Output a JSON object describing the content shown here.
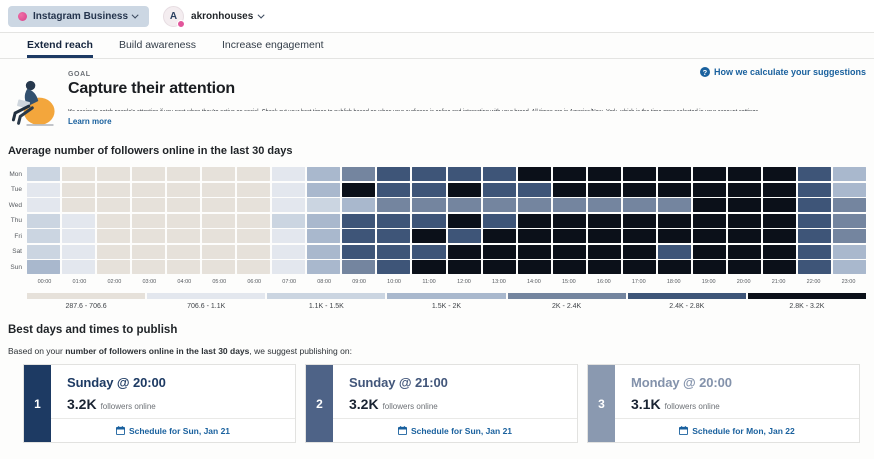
{
  "topbar": {
    "network_label": "Instagram Business",
    "profile_name": "akronhouses",
    "avatar_letter": "A"
  },
  "tabs": [
    {
      "label": "Extend reach",
      "active": true
    },
    {
      "label": "Build awareness",
      "active": false
    },
    {
      "label": "Increase engagement",
      "active": false
    }
  ],
  "goal": {
    "eyebrow": "GOAL",
    "title": "Capture their attention",
    "description": "It's easier to catch people's attention if you post when they're active on social. Check out your best times to publish based on when your audience is online and interacting with your brand. All times are in America/New_York, which is the time zone selected in your account settings.",
    "learn_more": "Learn more",
    "help_link": "How we calculate your suggestions"
  },
  "chart_data": {
    "type": "heatmap",
    "title": "Average number of followers online in the last 30 days",
    "rows": [
      "Mon",
      "Tue",
      "Wed",
      "Thu",
      "Fri",
      "Sat",
      "Sun"
    ],
    "columns": [
      "00:00",
      "01:00",
      "02:00",
      "03:00",
      "04:00",
      "05:00",
      "06:00",
      "07:00",
      "08:00",
      "09:00",
      "10:00",
      "11:00",
      "12:00",
      "13:00",
      "14:00",
      "15:00",
      "16:00",
      "17:00",
      "18:00",
      "19:00",
      "20:00",
      "21:00",
      "22:00",
      "23:00"
    ],
    "legend": [
      {
        "label": "287.6 - 706.6",
        "color": "#e6e1da"
      },
      {
        "label": "706.6 - 1.1K",
        "color": "#e3e7ee"
      },
      {
        "label": "1.1K - 1.5K",
        "color": "#cbd5e1"
      },
      {
        "label": "1.5K - 2K",
        "color": "#a9b8cd"
      },
      {
        "label": "2K - 2.4K",
        "color": "#74859f"
      },
      {
        "label": "2.4K - 2.8K",
        "color": "#3e5578"
      },
      {
        "label": "2.8K - 3.2K",
        "color": "#0b1019"
      }
    ],
    "levels": [
      [
        3,
        1,
        1,
        1,
        1,
        1,
        1,
        2,
        4,
        5,
        6,
        6,
        6,
        6,
        7,
        7,
        7,
        7,
        7,
        7,
        7,
        7,
        6,
        4
      ],
      [
        2,
        1,
        1,
        1,
        1,
        1,
        1,
        2,
        4,
        7,
        6,
        6,
        7,
        6,
        6,
        7,
        7,
        7,
        7,
        7,
        7,
        7,
        6,
        4
      ],
      [
        2,
        1,
        1,
        1,
        1,
        1,
        1,
        2,
        3,
        4,
        5,
        5,
        5,
        5,
        5,
        5,
        5,
        5,
        5,
        7,
        7,
        7,
        6,
        5
      ],
      [
        3,
        2,
        1,
        1,
        1,
        1,
        1,
        3,
        4,
        6,
        6,
        6,
        7,
        6,
        7,
        7,
        7,
        7,
        7,
        7,
        7,
        7,
        6,
        5
      ],
      [
        3,
        2,
        1,
        1,
        1,
        1,
        1,
        2,
        4,
        6,
        6,
        7,
        6,
        7,
        7,
        7,
        7,
        7,
        7,
        7,
        7,
        7,
        6,
        5
      ],
      [
        3,
        2,
        1,
        1,
        1,
        1,
        1,
        2,
        4,
        6,
        6,
        6,
        7,
        7,
        7,
        7,
        7,
        7,
        6,
        7,
        7,
        7,
        6,
        4
      ],
      [
        4,
        2,
        1,
        1,
        1,
        1,
        1,
        2,
        4,
        5,
        6,
        7,
        7,
        7,
        7,
        7,
        7,
        7,
        7,
        7,
        7,
        7,
        6,
        4
      ]
    ]
  },
  "suggestions": {
    "title": "Best days and times to publish",
    "intro_prefix": "Based on your ",
    "intro_bold": "number of followers online in the last 30 days",
    "intro_suffix": ", we suggest publishing on:",
    "cards": [
      {
        "rank": "1",
        "title": "Sunday @ 20:00",
        "value": "3.2K",
        "value_label": "followers online",
        "cta": "Schedule for Sun, Jan 21",
        "accent": "#1d3a63",
        "title_color": "#1d3a63"
      },
      {
        "rank": "2",
        "title": "Sunday @ 21:00",
        "value": "3.2K",
        "value_label": "followers online",
        "cta": "Schedule for Sun, Jan 21",
        "accent": "#4e6387",
        "title_color": "#42567a"
      },
      {
        "rank": "3",
        "title": "Monday @ 20:00",
        "value": "3.1K",
        "value_label": "followers online",
        "cta": "Schedule for Mon, Jan 22",
        "accent": "#8a99b0",
        "title_color": "#8392ab"
      }
    ]
  }
}
